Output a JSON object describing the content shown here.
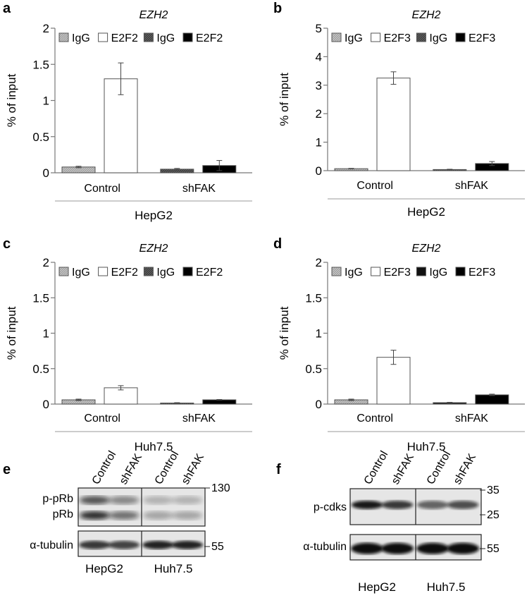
{
  "chart_data": [
    {
      "type": "bar",
      "panel": "a",
      "title": "EZH2",
      "ylabel": "% of input",
      "ylim": [
        0,
        2
      ],
      "yticks": [
        "0",
        "0.5",
        "1",
        "1.5",
        "2"
      ],
      "categories": [
        "Control",
        "shFAK"
      ],
      "cell_line": "HepG2",
      "legend": [
        "IgG",
        "E2F2",
        "IgG",
        "E2F2"
      ],
      "series": [
        {
          "name": "IgG",
          "color": "#bdbdbd",
          "values": [
            0.08,
            null
          ],
          "errors": [
            0.01,
            null
          ]
        },
        {
          "name": "E2F2",
          "color": "#ffffff",
          "values": [
            1.3,
            null
          ],
          "errors": [
            0.22,
            null
          ]
        },
        {
          "name": "IgG",
          "color": "#6b6b6b",
          "values": [
            null,
            0.05
          ],
          "errors": [
            null,
            0.01
          ]
        },
        {
          "name": "E2F2",
          "color": "#000000",
          "values": [
            null,
            0.1
          ],
          "errors": [
            null,
            0.07
          ]
        }
      ]
    },
    {
      "type": "bar",
      "panel": "b",
      "title": "EZH2",
      "ylabel": "% of input",
      "ylim": [
        0,
        5
      ],
      "yticks": [
        "0",
        "1",
        "2",
        "3",
        "4",
        "5"
      ],
      "categories": [
        "Control",
        "shFAK"
      ],
      "cell_line": "HepG2",
      "legend": [
        "IgG",
        "E2F3",
        "IgG",
        "E2F3"
      ],
      "series": [
        {
          "name": "IgG",
          "color": "#bdbdbd",
          "values": [
            0.07,
            null
          ],
          "errors": [
            0.01,
            null
          ]
        },
        {
          "name": "E2F3",
          "color": "#ffffff",
          "values": [
            3.25,
            null
          ],
          "errors": [
            0.22,
            null
          ]
        },
        {
          "name": "IgG",
          "color": "#6b6b6b",
          "values": [
            null,
            0.04
          ],
          "errors": [
            null,
            0.01
          ]
        },
        {
          "name": "E2F3",
          "color": "#000000",
          "values": [
            null,
            0.25
          ],
          "errors": [
            null,
            0.07
          ]
        }
      ]
    },
    {
      "type": "bar",
      "panel": "c",
      "title": "EZH2",
      "ylabel": "% of input",
      "ylim": [
        0,
        2
      ],
      "yticks": [
        "0",
        "0.5",
        "1",
        "1.5",
        "2"
      ],
      "categories": [
        "Control",
        "shFAK"
      ],
      "cell_line": "Huh7.5",
      "legend": [
        "IgG",
        "E2F2",
        "IgG",
        "E2F2"
      ],
      "series": [
        {
          "name": "IgG",
          "color": "#bdbdbd",
          "values": [
            0.06,
            null
          ],
          "errors": [
            0.01,
            null
          ]
        },
        {
          "name": "E2F2",
          "color": "#ffffff",
          "values": [
            0.23,
            null
          ],
          "errors": [
            0.03,
            null
          ]
        },
        {
          "name": "IgG",
          "color": "#6b6b6b",
          "values": [
            null,
            0.015
          ],
          "errors": [
            null,
            0.005
          ]
        },
        {
          "name": "E2F2",
          "color": "#000000",
          "values": [
            null,
            0.06
          ],
          "errors": [
            null,
            0.005
          ]
        }
      ]
    },
    {
      "type": "bar",
      "panel": "d",
      "title": "EZH2",
      "ylabel": "% of input",
      "ylim": [
        0,
        2
      ],
      "yticks": [
        "0",
        "0.5",
        "1",
        "1.5",
        "2"
      ],
      "categories": [
        "Control",
        "shFAK"
      ],
      "cell_line": "Huh7.5",
      "legend": [
        "IgG",
        "E2F3",
        "IgG",
        "E2F3"
      ],
      "series": [
        {
          "name": "IgG",
          "color": "#bdbdbd",
          "values": [
            0.06,
            null
          ],
          "errors": [
            0.01,
            null
          ]
        },
        {
          "name": "E2F3",
          "color": "#ffffff",
          "values": [
            0.66,
            null
          ],
          "errors": [
            0.1,
            null
          ]
        },
        {
          "name": "IgG",
          "color": "#111111",
          "values": [
            null,
            0.02
          ],
          "errors": [
            null,
            0.005
          ]
        },
        {
          "name": "E2F3",
          "color": "#000000",
          "values": [
            null,
            0.13
          ],
          "errors": [
            null,
            0.01
          ]
        }
      ]
    }
  ],
  "blots": [
    {
      "panel": "e",
      "lanes": [
        "Control",
        "shFAK",
        "Control",
        "shFAK"
      ],
      "rows": [
        {
          "labels": [
            "p-pRb",
            "pRb"
          ],
          "markers": [
            "130"
          ]
        },
        {
          "labels": [
            "α-tubulin"
          ],
          "markers": [
            "55"
          ]
        }
      ],
      "groups": [
        "HepG2",
        "Huh7.5"
      ]
    },
    {
      "panel": "f",
      "lanes": [
        "Control",
        "shFAK",
        "Control",
        "shFAK"
      ],
      "rows": [
        {
          "labels": [
            "p-cdks"
          ],
          "markers": [
            "35",
            "25"
          ]
        },
        {
          "labels": [
            "α-tubulin"
          ],
          "markers": [
            "55"
          ]
        }
      ],
      "groups": [
        "HepG2",
        "Huh7.5"
      ]
    }
  ]
}
